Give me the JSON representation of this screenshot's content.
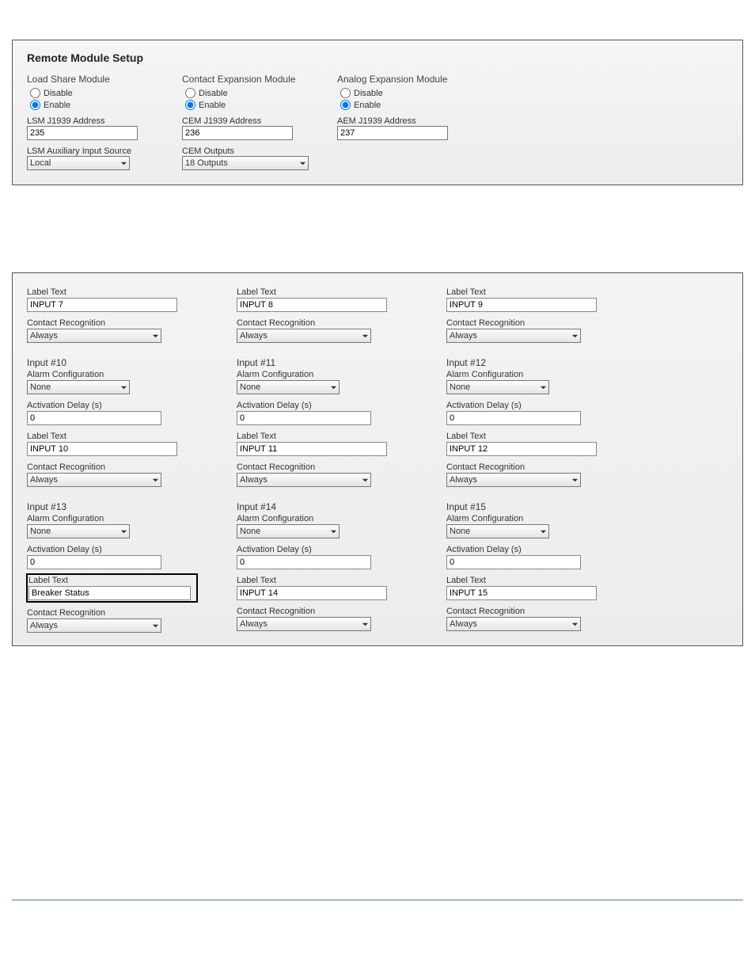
{
  "remote": {
    "title": "Remote Module Setup",
    "modules": [
      {
        "name": "Load Share Module",
        "disable": "Disable",
        "enable": "Enable",
        "selected": "enable",
        "addr_label": "LSM J1939 Address",
        "addr": "235",
        "extra_label": "LSM Auxiliary Input Source",
        "extra_value": "Local"
      },
      {
        "name": "Contact Expansion Module",
        "disable": "Disable",
        "enable": "Enable",
        "selected": "enable",
        "addr_label": "CEM J1939 Address",
        "addr": "236",
        "extra_label": "CEM Outputs",
        "extra_value": "18 Outputs"
      },
      {
        "name": "Analog Expansion Module",
        "disable": "Disable",
        "enable": "Enable",
        "selected": "enable",
        "addr_label": "AEM J1939 Address",
        "addr": "237"
      }
    ]
  },
  "labels": {
    "label_text": "Label Text",
    "contact_recog": "Contact Recognition",
    "alarm_config": "Alarm Configuration",
    "activation_delay": "Activation Delay (s)",
    "always": "Always",
    "none": "None"
  },
  "top_row": [
    {
      "label_value": "INPUT 7"
    },
    {
      "label_value": "INPUT 8"
    },
    {
      "label_value": "INPUT 9"
    }
  ],
  "inputs": [
    {
      "title": "Input #10",
      "delay": "0",
      "label_value": "INPUT 10"
    },
    {
      "title": "Input #11",
      "delay": "0",
      "label_value": "INPUT 11"
    },
    {
      "title": "Input #12",
      "delay": "0",
      "label_value": "INPUT 12"
    },
    {
      "title": "Input #13",
      "delay": "0",
      "label_value": "Breaker Status",
      "highlight": true
    },
    {
      "title": "Input #14",
      "delay": "0",
      "label_value": "INPUT 14"
    },
    {
      "title": "Input #15",
      "delay": "0",
      "label_value": "INPUT 15"
    }
  ]
}
